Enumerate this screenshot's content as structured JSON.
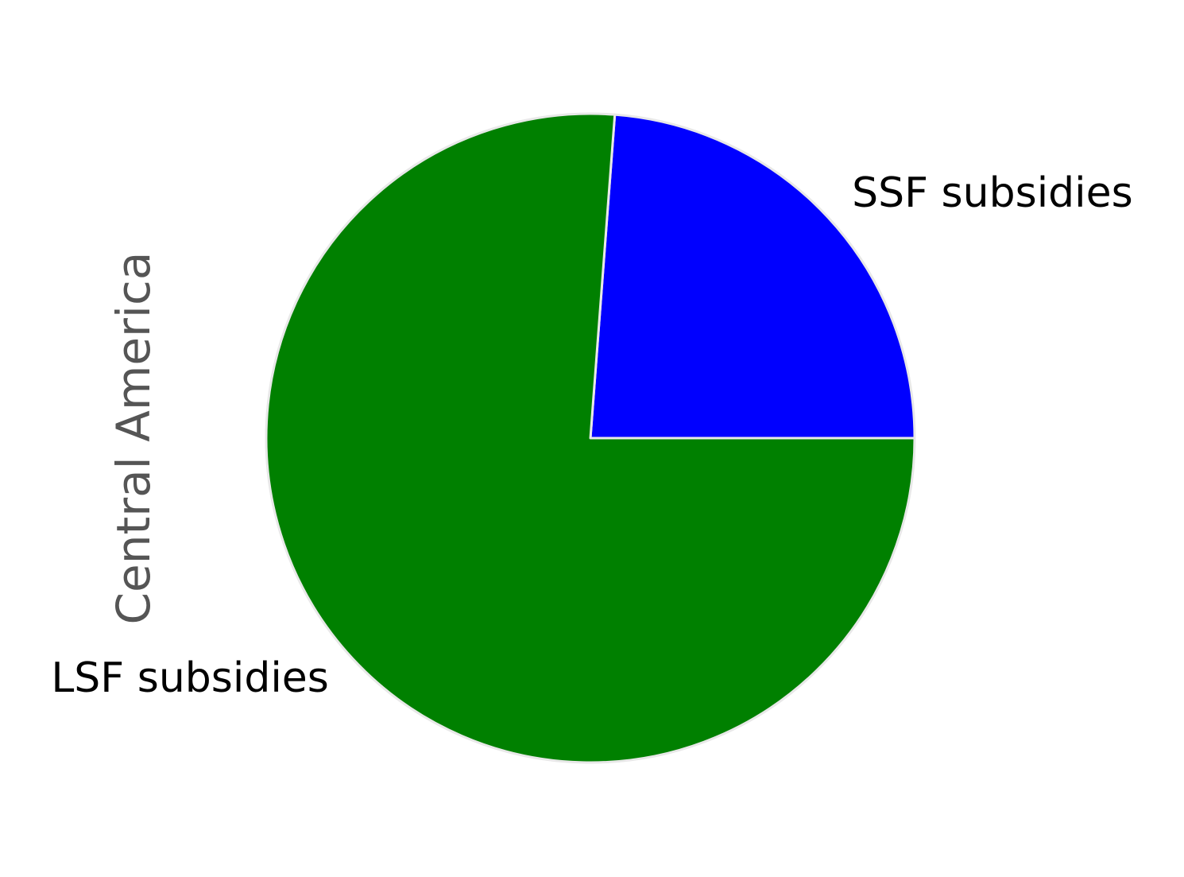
{
  "chart_data": {
    "type": "pie",
    "ylabel": "Central America",
    "start_angle_deg": 0,
    "direction": "counterclockwise",
    "slice_edge_color": "#e8e8e8",
    "slices": [
      {
        "label": "SSF subsidies",
        "value": 23.8,
        "color": "#0000ff"
      },
      {
        "label": "LSF subsidies",
        "value": 76.2,
        "color": "#008000"
      }
    ]
  }
}
